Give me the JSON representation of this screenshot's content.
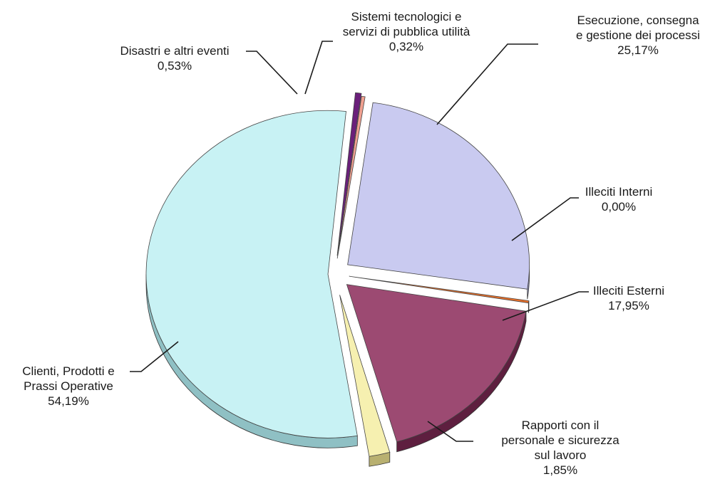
{
  "chart_data": {
    "type": "pie",
    "title": "",
    "slices": [
      {
        "label": "Esecuzione, consegna e gestione dei processi",
        "lines": [
          "Esecuzione, consegna",
          "e gestione dei processi"
        ],
        "value": 25.17,
        "value_label": "25,17%",
        "color": "#c9caf0",
        "side": "#9a9bc6"
      },
      {
        "label": "Illeciti Interni",
        "lines": [
          "Illeciti Interni"
        ],
        "value": 0.0,
        "value_label": "0,00%",
        "color": "#e8702a",
        "side": "#a8471a"
      },
      {
        "label": "Illeciti Esterni",
        "lines": [
          "Illeciti Esterni"
        ],
        "value": 17.95,
        "value_label": "17,95%",
        "color": "#9c4a72",
        "side": "#5e1f3f"
      },
      {
        "label": "Rapporti con il personale e sicurezza sul lavoro",
        "lines": [
          "Rapporti con il",
          "personale e sicurezza",
          "sul lavoro"
        ],
        "value": 1.85,
        "value_label": "1,85%",
        "color": "#f6f0b0",
        "side": "#b8b070"
      },
      {
        "label": "Clienti, Prodotti e Prassi Operative",
        "lines": [
          "Clienti, Prodotti e",
          "Prassi Operative"
        ],
        "value": 54.19,
        "value_label": "54,19%",
        "color": "#c8f2f4",
        "side": "#8fc0c4"
      },
      {
        "label": "Disastri e altri eventi",
        "lines": [
          "Disastri e altri eventi"
        ],
        "value": 0.53,
        "value_label": "0,53%",
        "color": "#6a1f7a",
        "side": "#3c0e48"
      },
      {
        "label": "Sistemi tecnologici e servizi di pubblica utilità",
        "lines": [
          "Sistemi tecnologici e",
          "servizi di pubblica utilità"
        ],
        "value": 0.32,
        "value_label": "0,32%",
        "color": "#f0a090",
        "side": "#b06a5e"
      }
    ]
  }
}
